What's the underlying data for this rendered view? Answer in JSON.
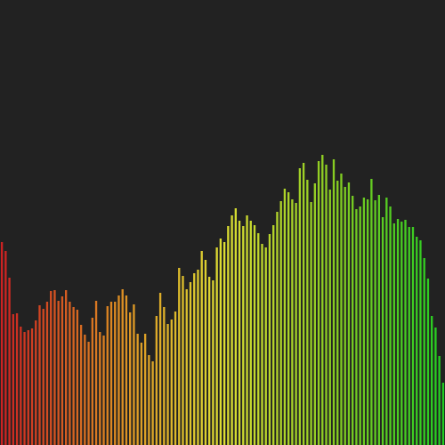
{
  "chart_data": {
    "type": "bar",
    "background": "#222222",
    "color_gradient": [
      "#cc2222",
      "#dd8822",
      "#dddd33",
      "#88cc22",
      "#22cc22"
    ],
    "ylim": [
      0,
      500
    ],
    "grid": false,
    "legend": false,
    "values": [
      228,
      218,
      188,
      147,
      148,
      133,
      127,
      129,
      131,
      140,
      157,
      153,
      161,
      173,
      174,
      162,
      167,
      174,
      161,
      155,
      152,
      135,
      124,
      116,
      143,
      162,
      127,
      123,
      156,
      161,
      161,
      168,
      175,
      168,
      149,
      158,
      125,
      115,
      125,
      101,
      94,
      145,
      171,
      155,
      136,
      141,
      150,
      199,
      190,
      175,
      183,
      193,
      197,
      218,
      208,
      189,
      185,
      222,
      232,
      228,
      246,
      258,
      266,
      252,
      246,
      258,
      252,
      247,
      238,
      226,
      222,
      237,
      247,
      262,
      274,
      288,
      284,
      276,
      272,
      311,
      317,
      298,
      273,
      294,
      319,
      326,
      315,
      287,
      321,
      297,
      305,
      290,
      295,
      280,
      265,
      268,
      278,
      276,
      299,
      275,
      281,
      256,
      278,
      268,
      249,
      254,
      251,
      253,
      245,
      245,
      234,
      230,
      210,
      187,
      145,
      132,
      100,
      70
    ]
  }
}
